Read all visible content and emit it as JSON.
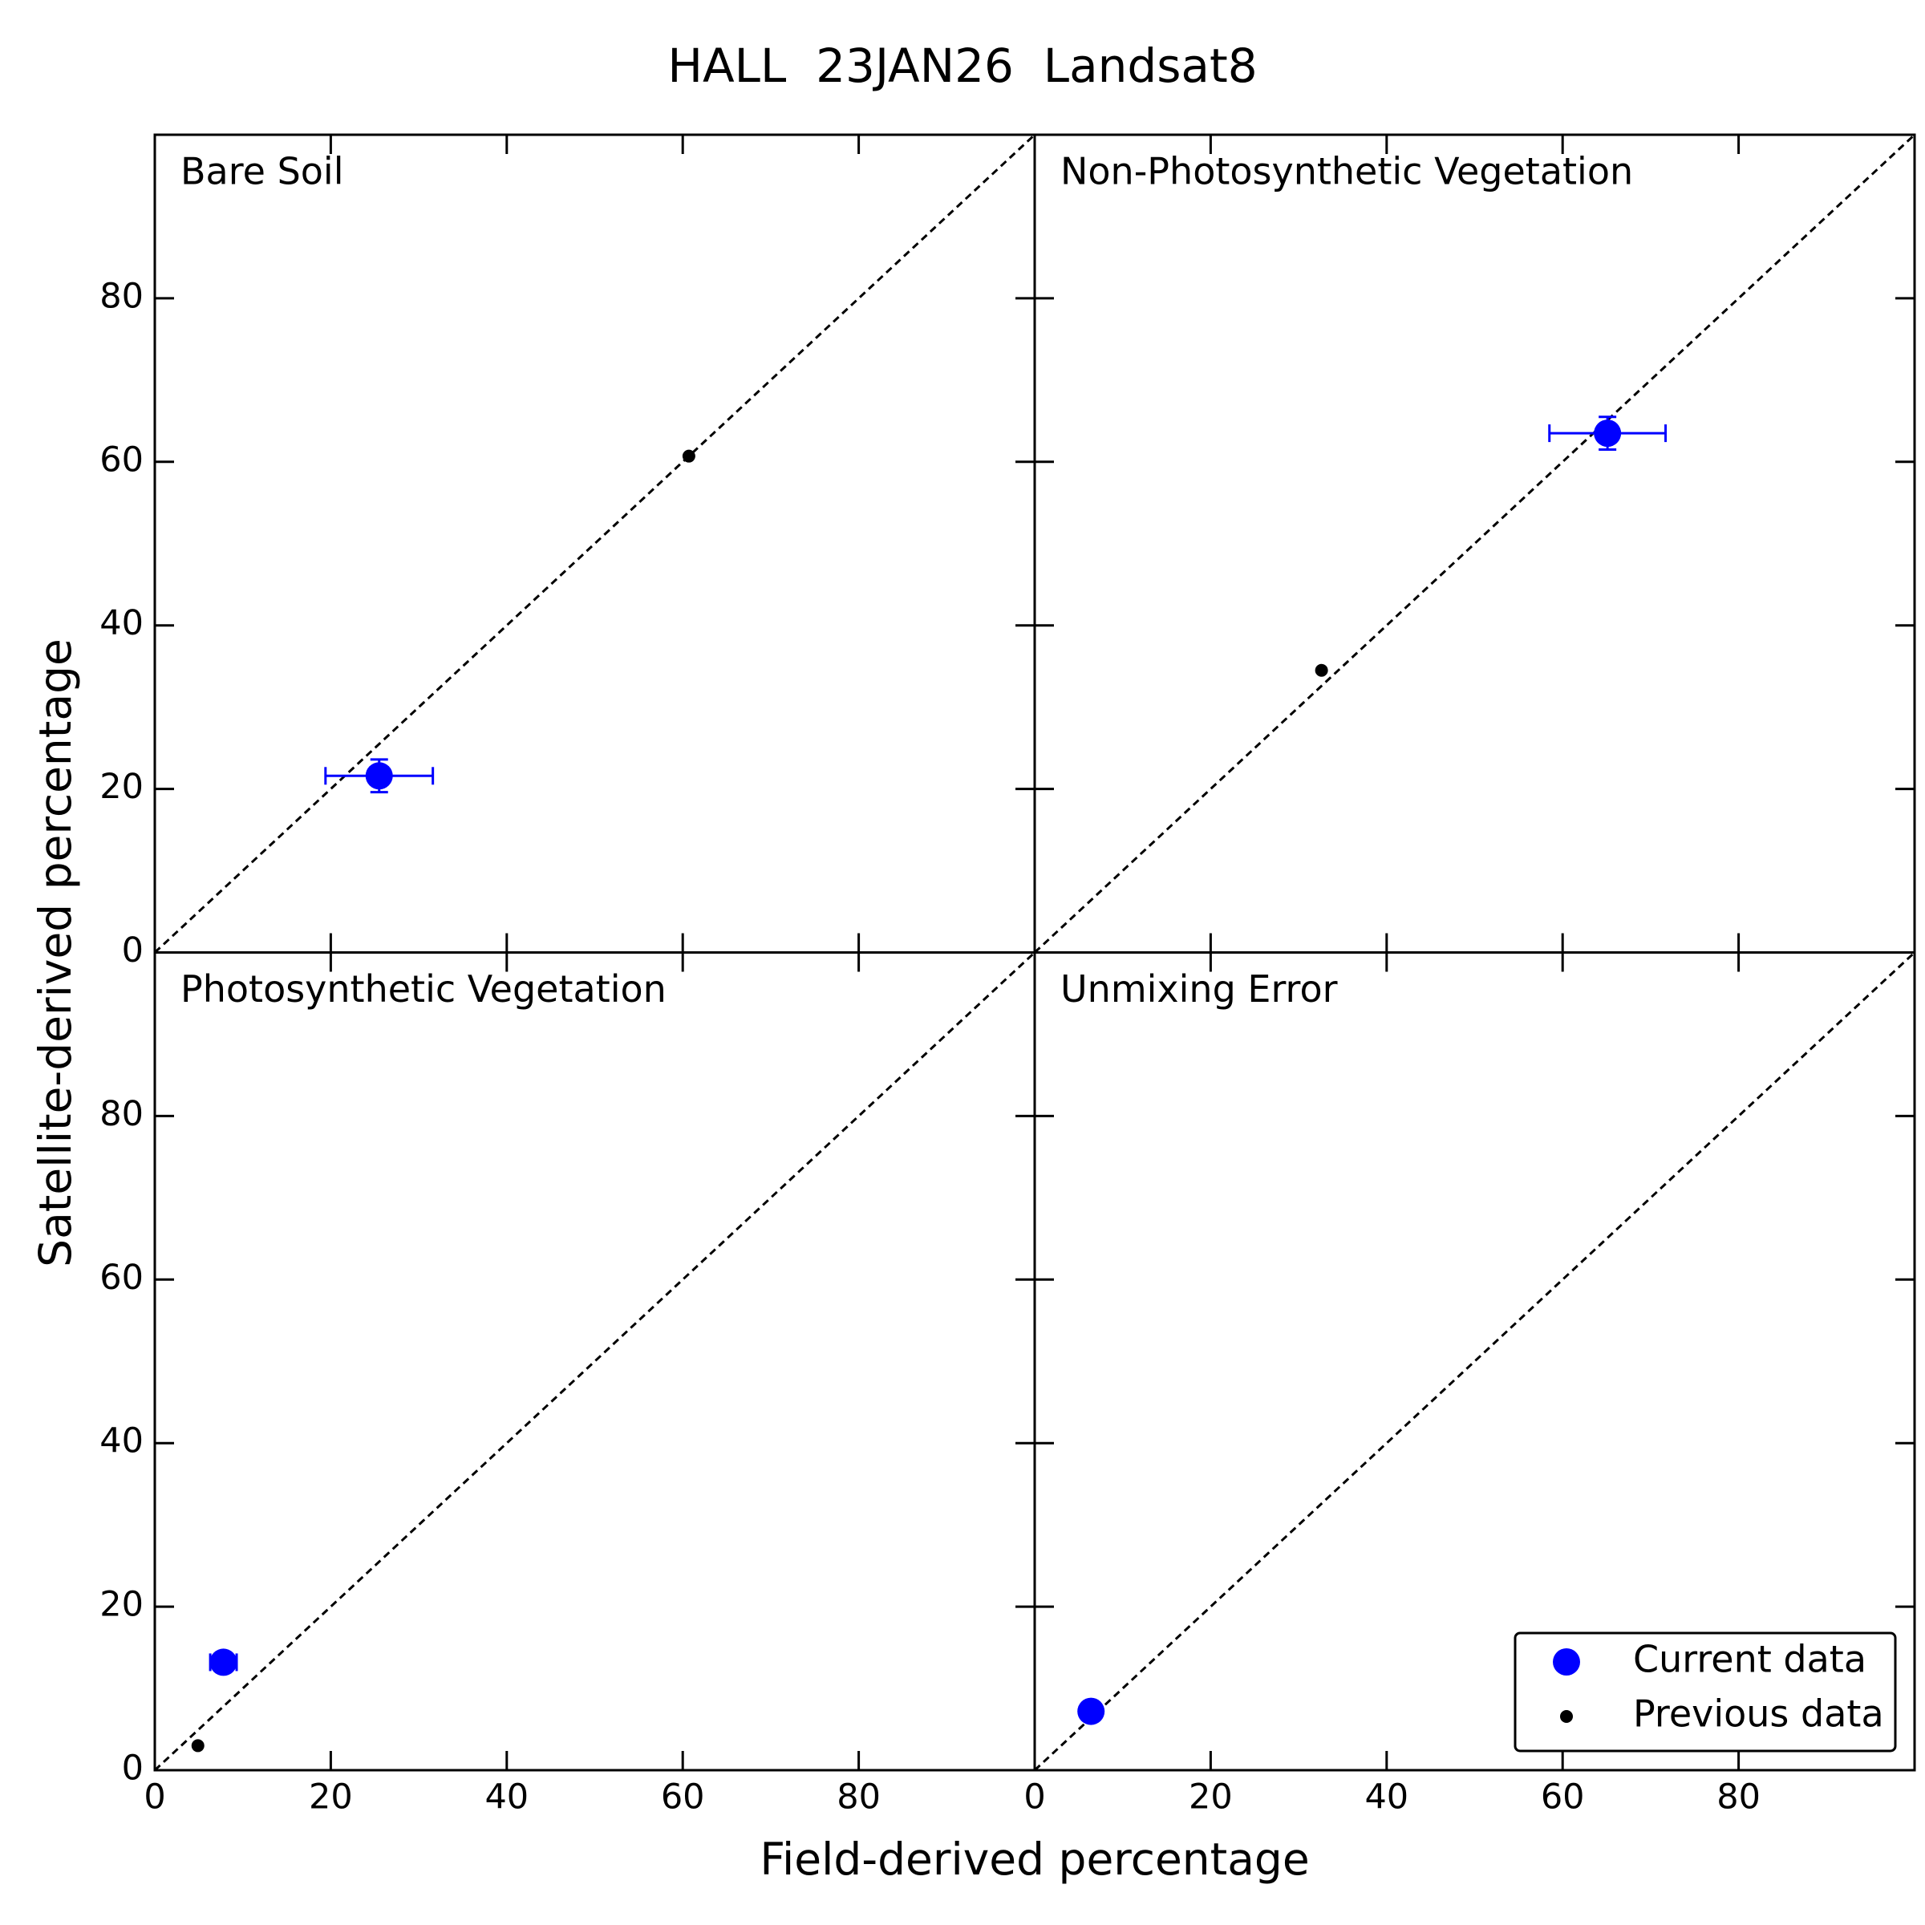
{
  "title": "HALL  23JAN26  Landsat8",
  "xlabel": "Field-derived percentage",
  "ylabel": "Satellite-derived percentage",
  "chart_data": [
    {
      "type": "scatter",
      "subtitle": "Bare Soil",
      "xlim": [
        0,
        100
      ],
      "ylim": [
        0,
        100
      ],
      "xticks": [
        0,
        20,
        40,
        60,
        80
      ],
      "yticks": [
        0,
        20,
        40,
        60,
        80
      ],
      "series": [
        {
          "name": "Current data",
          "color": "#0000ff",
          "x": [
            25.5
          ],
          "values": [
            21.6
          ],
          "xerr": [
            6.1
          ],
          "yerr": [
            2.0
          ]
        },
        {
          "name": "Previous data",
          "color": "#000000",
          "x": [
            60.7
          ],
          "values": [
            60.7
          ]
        }
      ]
    },
    {
      "type": "scatter",
      "subtitle": "Non-Photosynthetic Vegetation",
      "xlim": [
        0,
        100
      ],
      "ylim": [
        0,
        100
      ],
      "xticks": [
        0,
        20,
        40,
        60,
        80
      ],
      "yticks": [
        0,
        20,
        40,
        60,
        80
      ],
      "series": [
        {
          "name": "Current data",
          "color": "#0000ff",
          "x": [
            65.1
          ],
          "values": [
            63.5
          ],
          "xerr": [
            6.6
          ],
          "yerr": [
            2.0
          ]
        },
        {
          "name": "Previous data",
          "color": "#000000",
          "x": [
            32.6
          ],
          "values": [
            34.5
          ]
        }
      ]
    },
    {
      "type": "scatter",
      "subtitle": "Photosynthetic Vegetation",
      "xlim": [
        0,
        100
      ],
      "ylim": [
        0,
        100
      ],
      "xticks": [
        0,
        20,
        40,
        60,
        80
      ],
      "yticks": [
        0,
        20,
        40,
        60,
        80
      ],
      "series": [
        {
          "name": "Current data",
          "color": "#0000ff",
          "x": [
            7.8
          ],
          "values": [
            13.2
          ],
          "xerr": [
            1.5
          ],
          "yerr": [
            1.0
          ]
        },
        {
          "name": "Previous data",
          "color": "#000000",
          "x": [
            4.9
          ],
          "values": [
            3.0
          ]
        }
      ]
    },
    {
      "type": "scatter",
      "subtitle": "Unmixing Error",
      "xlim": [
        0,
        100
      ],
      "ylim": [
        0,
        100
      ],
      "xticks": [
        0,
        20,
        40,
        60,
        80
      ],
      "yticks": [
        0,
        20,
        40,
        60,
        80
      ],
      "legend": "lower right",
      "series": [
        {
          "name": "Current data",
          "color": "#0000ff",
          "x": [
            6.4
          ],
          "values": [
            7.2
          ],
          "xerr": [
            0.5
          ],
          "yerr": [
            0.5
          ]
        },
        {
          "name": "Previous data",
          "color": "#000000",
          "x": [],
          "values": []
        }
      ]
    }
  ]
}
